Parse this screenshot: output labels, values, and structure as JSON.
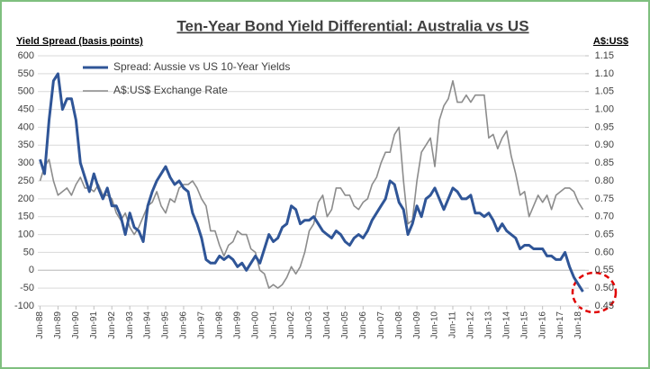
{
  "chart_data": {
    "type": "line",
    "title": "Ten-Year Bond Yield Differential:  Australia vs US",
    "y_label": "Yield Spread (basis points)",
    "y2_label": "A$:US$",
    "categories": [
      "Jun-88",
      null,
      null,
      null,
      "Jun-89",
      null,
      null,
      null,
      "Jun-90",
      null,
      null,
      null,
      "Jun-91",
      null,
      null,
      null,
      "Jun-92",
      null,
      null,
      null,
      "Jun-93",
      null,
      null,
      null,
      "Jun-94",
      null,
      null,
      null,
      "Jun-95",
      null,
      null,
      null,
      "Jun-96",
      null,
      null,
      null,
      "Jun-97",
      null,
      null,
      null,
      "Jun-98",
      null,
      null,
      null,
      "Jun-99",
      null,
      null,
      null,
      "Jun-00",
      null,
      null,
      null,
      "Jun-01",
      null,
      null,
      null,
      "Jun-02",
      null,
      null,
      null,
      "Jun-03",
      null,
      null,
      null,
      "Jun-04",
      null,
      null,
      null,
      "Jun-05",
      null,
      null,
      null,
      "Jun-06",
      null,
      null,
      null,
      "Jun-07",
      null,
      null,
      null,
      "Jun-08",
      null,
      null,
      null,
      "Jun-09",
      null,
      null,
      null,
      "Jun-10",
      null,
      null,
      null,
      "Jun-11",
      null,
      null,
      null,
      "Jun-12",
      null,
      null,
      null,
      "Jun-13",
      null,
      null,
      null,
      "Jun-14",
      null,
      null,
      null,
      "Jun-15",
      null,
      null,
      null,
      "Jun-16",
      null,
      null,
      null,
      "Jun-17",
      null,
      null,
      null,
      "Jun-18",
      null
    ],
    "series": [
      {
        "name": "Spread:  Aussie vs US 10-Year Yields",
        "color": "#2f5597",
        "width": 3,
        "values": [
          310,
          270,
          420,
          530,
          550,
          450,
          480,
          480,
          420,
          300,
          260,
          220,
          270,
          230,
          200,
          230,
          180,
          180,
          150,
          100,
          160,
          120,
          110,
          80,
          180,
          220,
          250,
          270,
          290,
          260,
          240,
          250,
          230,
          220,
          160,
          130,
          90,
          30,
          20,
          20,
          40,
          30,
          40,
          30,
          10,
          20,
          0,
          20,
          40,
          20,
          60,
          100,
          80,
          90,
          120,
          130,
          180,
          170,
          130,
          140,
          140,
          150,
          130,
          110,
          100,
          90,
          110,
          100,
          80,
          70,
          90,
          100,
          90,
          110,
          140,
          160,
          180,
          200,
          250,
          240,
          190,
          170,
          100,
          130,
          180,
          150,
          200,
          210,
          230,
          200,
          170,
          200,
          230,
          220,
          200,
          200,
          210,
          160,
          160,
          150,
          160,
          140,
          110,
          130,
          110,
          100,
          90,
          60,
          70,
          70,
          60,
          60,
          60,
          40,
          40,
          30,
          30,
          50,
          10,
          -20,
          -40,
          -60
        ]
      },
      {
        "name": "A$:US$ Exchange Rate",
        "color": "#8c8c8c",
        "width": 1.6,
        "axis": "y2",
        "values": [
          0.8,
          0.84,
          0.86,
          0.8,
          0.76,
          0.77,
          0.78,
          0.76,
          0.79,
          0.81,
          0.78,
          0.78,
          0.77,
          0.79,
          0.76,
          0.76,
          0.75,
          0.71,
          0.69,
          0.71,
          0.67,
          0.65,
          0.67,
          0.7,
          0.73,
          0.74,
          0.77,
          0.73,
          0.71,
          0.75,
          0.74,
          0.78,
          0.79,
          0.79,
          0.8,
          0.78,
          0.75,
          0.73,
          0.66,
          0.66,
          0.62,
          0.59,
          0.62,
          0.63,
          0.66,
          0.65,
          0.65,
          0.61,
          0.6,
          0.55,
          0.54,
          0.5,
          0.51,
          0.5,
          0.51,
          0.53,
          0.56,
          0.54,
          0.56,
          0.6,
          0.66,
          0.68,
          0.74,
          0.76,
          0.7,
          0.72,
          0.78,
          0.78,
          0.76,
          0.76,
          0.73,
          0.72,
          0.74,
          0.75,
          0.79,
          0.81,
          0.85,
          0.88,
          0.88,
          0.93,
          0.95,
          0.8,
          0.68,
          0.69,
          0.8,
          0.88,
          0.9,
          0.92,
          0.84,
          0.97,
          1.01,
          1.03,
          1.08,
          1.02,
          1.02,
          1.04,
          1.02,
          1.04,
          1.04,
          1.04,
          0.92,
          0.93,
          0.89,
          0.92,
          0.94,
          0.87,
          0.82,
          0.76,
          0.77,
          0.7,
          0.73,
          0.76,
          0.74,
          0.76,
          0.72,
          0.76,
          0.77,
          0.78,
          0.78,
          0.77,
          0.74,
          0.72
        ]
      }
    ],
    "ylim": [
      -100,
      600
    ],
    "yticks": [
      -100,
      -50,
      0,
      50,
      100,
      150,
      200,
      250,
      300,
      350,
      400,
      450,
      500,
      550,
      600
    ],
    "y2lim": [
      0.45,
      1.15
    ],
    "y2ticks": [
      0.45,
      {
        "value": 0.5,
        "label": "0.50"
      },
      0.55,
      {
        "value": 0.6,
        "label": "0.60"
      },
      0.65,
      {
        "value": 0.7,
        "label": "0.70"
      },
      0.75,
      {
        "value": 0.8,
        "label": "0.80"
      },
      0.85,
      {
        "value": 0.9,
        "label": "0.90"
      },
      0.95,
      {
        "value": 1,
        "label": "1.00"
      },
      1.05,
      {
        "value": 1.1,
        "label": "1.10"
      },
      1.15
    ],
    "grid": true,
    "legend": "top-left"
  }
}
